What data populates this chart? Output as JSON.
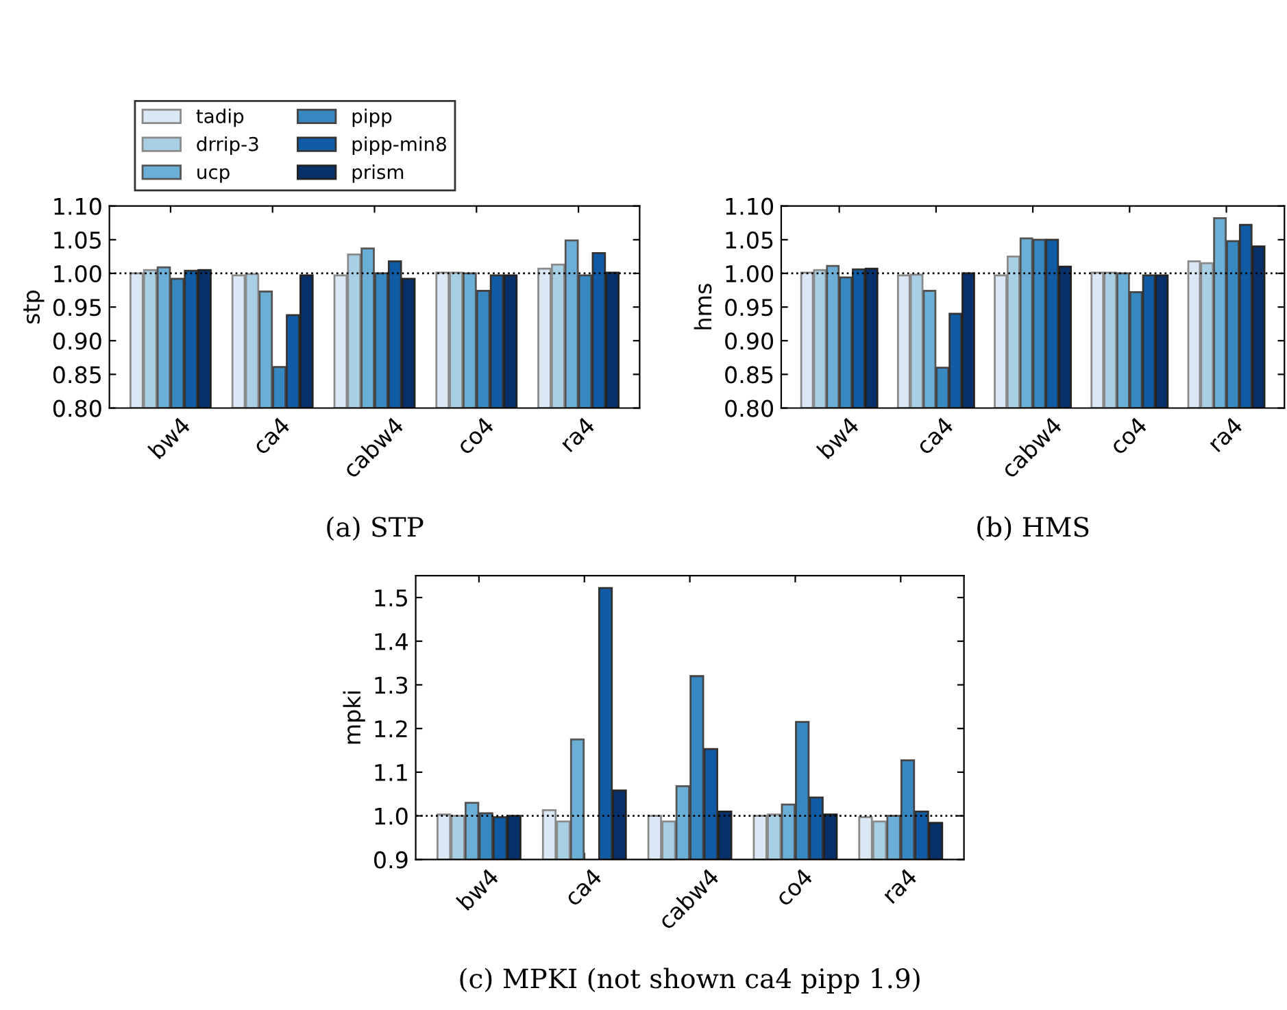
{
  "chart_data": [
    {
      "type": "bar",
      "ylabel": "stp",
      "categories": [
        "bw4",
        "ca4",
        "cabw4",
        "co4",
        "ra4"
      ],
      "legend": "top",
      "ylim": [
        0.8,
        1.1
      ],
      "yticks": [
        {
          "value": 0.8,
          "label": "0.80"
        },
        {
          "value": 0.85,
          "label": "0.85"
        },
        {
          "value": 0.9,
          "label": "0.90"
        },
        {
          "value": 0.95,
          "label": "0.95"
        },
        {
          "value": 1.0,
          "label": "1.00"
        },
        {
          "value": 1.05,
          "label": "1.05"
        },
        {
          "value": 1.1,
          "label": "1.10"
        }
      ],
      "ref_lines": [
        {
          "axis": "y",
          "value": 1.0,
          "color": "#000000",
          "line_style": "dotted"
        }
      ],
      "annotations": [
        "(a) STP"
      ],
      "series": [
        {
          "name": "tadip",
          "color": "#dae8f5",
          "values": [
            1.0,
            0.997,
            0.997,
            1.001,
            1.007
          ]
        },
        {
          "name": "drrip-3",
          "color": "#a9cfe5",
          "values": [
            1.005,
            0.999,
            1.028,
            1.001,
            1.013
          ]
        },
        {
          "name": "ucp",
          "color": "#6baed6",
          "values": [
            1.009,
            0.973,
            1.037,
            1.0,
            1.049
          ]
        },
        {
          "name": "pipp",
          "color": "#3787c0",
          "values": [
            0.992,
            0.861,
            1.0,
            0.974,
            0.997
          ]
        },
        {
          "name": "pipp-min8",
          "color": "#105ba4",
          "values": [
            1.004,
            0.938,
            1.018,
            0.997,
            1.03
          ]
        },
        {
          "name": "prism",
          "color": "#08306b",
          "values": [
            1.005,
            0.997,
            0.992,
            0.997,
            1.001
          ]
        }
      ]
    },
    {
      "type": "bar",
      "ylabel": "hms",
      "categories": [
        "bw4",
        "ca4",
        "cabw4",
        "co4",
        "ra4"
      ],
      "ylim": [
        0.8,
        1.1
      ],
      "yticks": [
        {
          "value": 0.8,
          "label": "0.80"
        },
        {
          "value": 0.85,
          "label": "0.85"
        },
        {
          "value": 0.9,
          "label": "0.90"
        },
        {
          "value": 0.95,
          "label": "0.95"
        },
        {
          "value": 1.0,
          "label": "1.00"
        },
        {
          "value": 1.05,
          "label": "1.05"
        },
        {
          "value": 1.1,
          "label": "1.10"
        }
      ],
      "ref_lines": [
        {
          "axis": "y",
          "value": 1.0,
          "color": "#000000",
          "line_style": "dotted"
        }
      ],
      "annotations": [
        "(b) HMS"
      ],
      "series": [
        {
          "color": "#dae8f5",
          "values": [
            1.001,
            0.997,
            0.997,
            1.001,
            1.018
          ]
        },
        {
          "color": "#a9cfe5",
          "values": [
            1.005,
            0.998,
            1.025,
            1.001,
            1.015
          ]
        },
        {
          "color": "#6baed6",
          "values": [
            1.011,
            0.974,
            1.052,
            1.0,
            1.082
          ]
        },
        {
          "color": "#3787c0",
          "values": [
            0.994,
            0.86,
            1.05,
            0.972,
            1.048
          ]
        },
        {
          "color": "#105ba4",
          "values": [
            1.006,
            0.94,
            1.05,
            0.997,
            1.072
          ]
        },
        {
          "color": "#08306b",
          "values": [
            1.007,
            1.0,
            1.01,
            0.997,
            1.04
          ]
        }
      ]
    },
    {
      "type": "bar",
      "ylabel": "mpki",
      "categories": [
        "bw4",
        "ca4",
        "cabw4",
        "co4",
        "ra4"
      ],
      "ylim": [
        0.9,
        1.55
      ],
      "yticks": [
        {
          "value": 0.9,
          "label": "0.9"
        },
        {
          "value": 1.0,
          "label": "1.0"
        },
        {
          "value": 1.1,
          "label": "1.1"
        },
        {
          "value": 1.2,
          "label": "1.2"
        },
        {
          "value": 1.3,
          "label": "1.3"
        },
        {
          "value": 1.4,
          "label": "1.4"
        },
        {
          "value": 1.5,
          "label": "1.5"
        }
      ],
      "ref_lines": [
        {
          "axis": "y",
          "value": 1.0,
          "color": "#000000",
          "line_style": "dotted"
        }
      ],
      "annotations": [
        "(c) MPKI (not shown ca4 pipp 1.9)"
      ],
      "series": [
        {
          "color": "#dae8f5",
          "values": [
            1.003,
            1.013,
            1.0,
            1.0,
            0.997
          ]
        },
        {
          "color": "#a9cfe5",
          "values": [
            1.0,
            0.987,
            0.987,
            1.003,
            0.987
          ]
        },
        {
          "color": "#6baed6",
          "values": [
            1.03,
            1.175,
            1.068,
            1.026,
            1.0
          ]
        },
        {
          "color": "#3787c0",
          "values": [
            1.006,
            null,
            1.32,
            1.215,
            1.127
          ]
        },
        {
          "color": "#105ba4",
          "values": [
            0.997,
            1.522,
            1.153,
            1.042,
            1.01
          ]
        },
        {
          "color": "#08306b",
          "values": [
            1.0,
            1.058,
            1.01,
            1.003,
            0.984
          ]
        }
      ]
    }
  ]
}
